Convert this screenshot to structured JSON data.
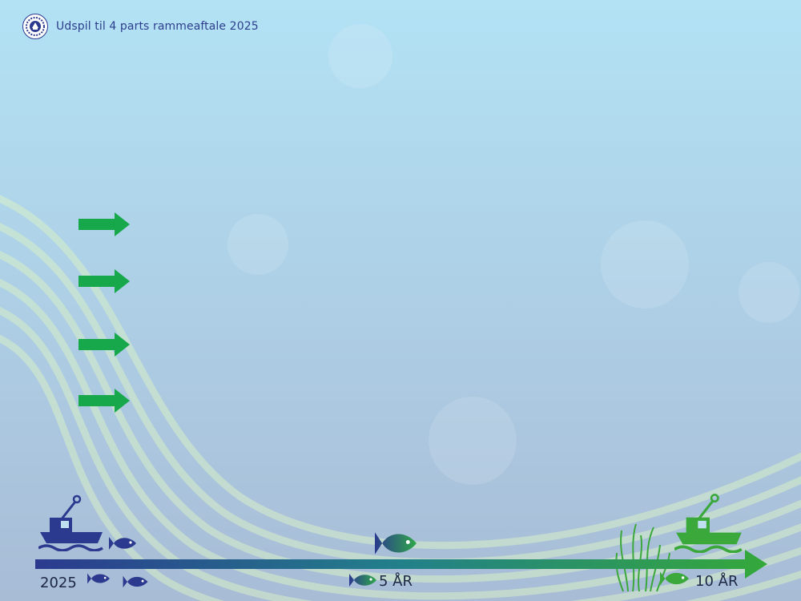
{
  "header": {
    "title": "Udspil til 4 parts rammeaftale 2025"
  },
  "arrows": [
    {
      "icon": "right-arrow-icon"
    },
    {
      "icon": "right-arrow-icon"
    },
    {
      "icon": "right-arrow-icon"
    },
    {
      "icon": "right-arrow-icon"
    }
  ],
  "timeline": {
    "start_label": "2025",
    "mid_label": "5 ÅR",
    "end_label": "10 ÅR"
  },
  "colors": {
    "navy": "#2b3a8f",
    "green": "#16a84a",
    "bg_top": "#b6e1f4",
    "bg_bottom": "#a9bfd6"
  }
}
